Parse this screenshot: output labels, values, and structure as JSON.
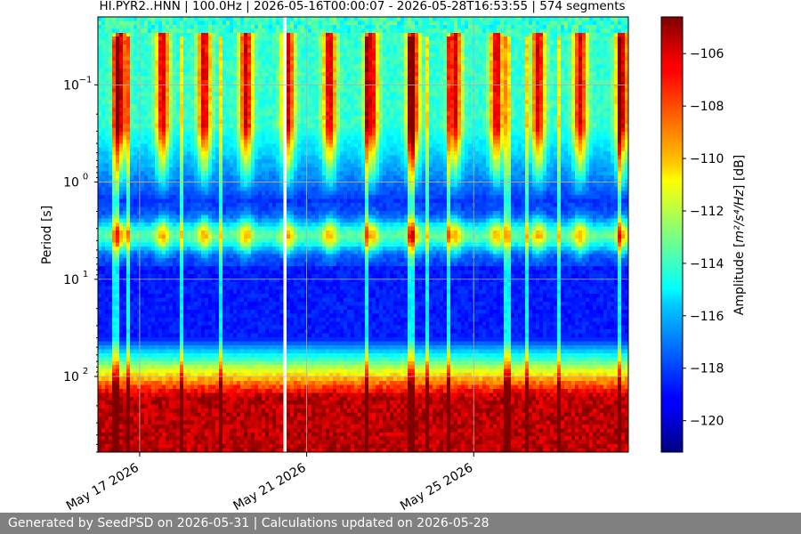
{
  "chart_data": {
    "type": "heatmap",
    "title": "HI.PYR2..HNN | 100.0Hz | 2026-05-16T00:00:07 - 2026-05-28T16:53:55 | 574 segments",
    "xlabel": "",
    "ylabel": "Period [s]",
    "x_tick_labels": [
      "May 17 2026",
      "May 21 2026",
      "May 25 2026"
    ],
    "x_range": [
      "2026-05-16T00:00:07",
      "2026-05-28T16:53:55"
    ],
    "y_scale": "log",
    "y_range": [
      0.02,
      600
    ],
    "y_reversed": true,
    "y_tick_labels": [
      "10",
      "10",
      "10",
      "10"
    ],
    "y_tick_exponents": [
      "−1",
      "0",
      "1",
      "2"
    ],
    "gap": {
      "start": "2026-05-20T09:30:00",
      "end": "2026-05-20T12:00:00"
    },
    "grid": true,
    "colorscale": "jet",
    "colorbar": {
      "label_prefix": "Amplitude [",
      "label_math": "m²/s⁴/Hz",
      "label_suffix": "] [dB]",
      "range": [
        -121.2,
        -104.6
      ],
      "tick_labels": [
        "−106",
        "−108",
        "−110",
        "−112",
        "−114",
        "−116",
        "−118",
        "−120"
      ]
    }
  },
  "footer": {
    "text": "Generated by SeedPSD on 2026-05-31 | Calculations updated on 2026-05-28"
  }
}
